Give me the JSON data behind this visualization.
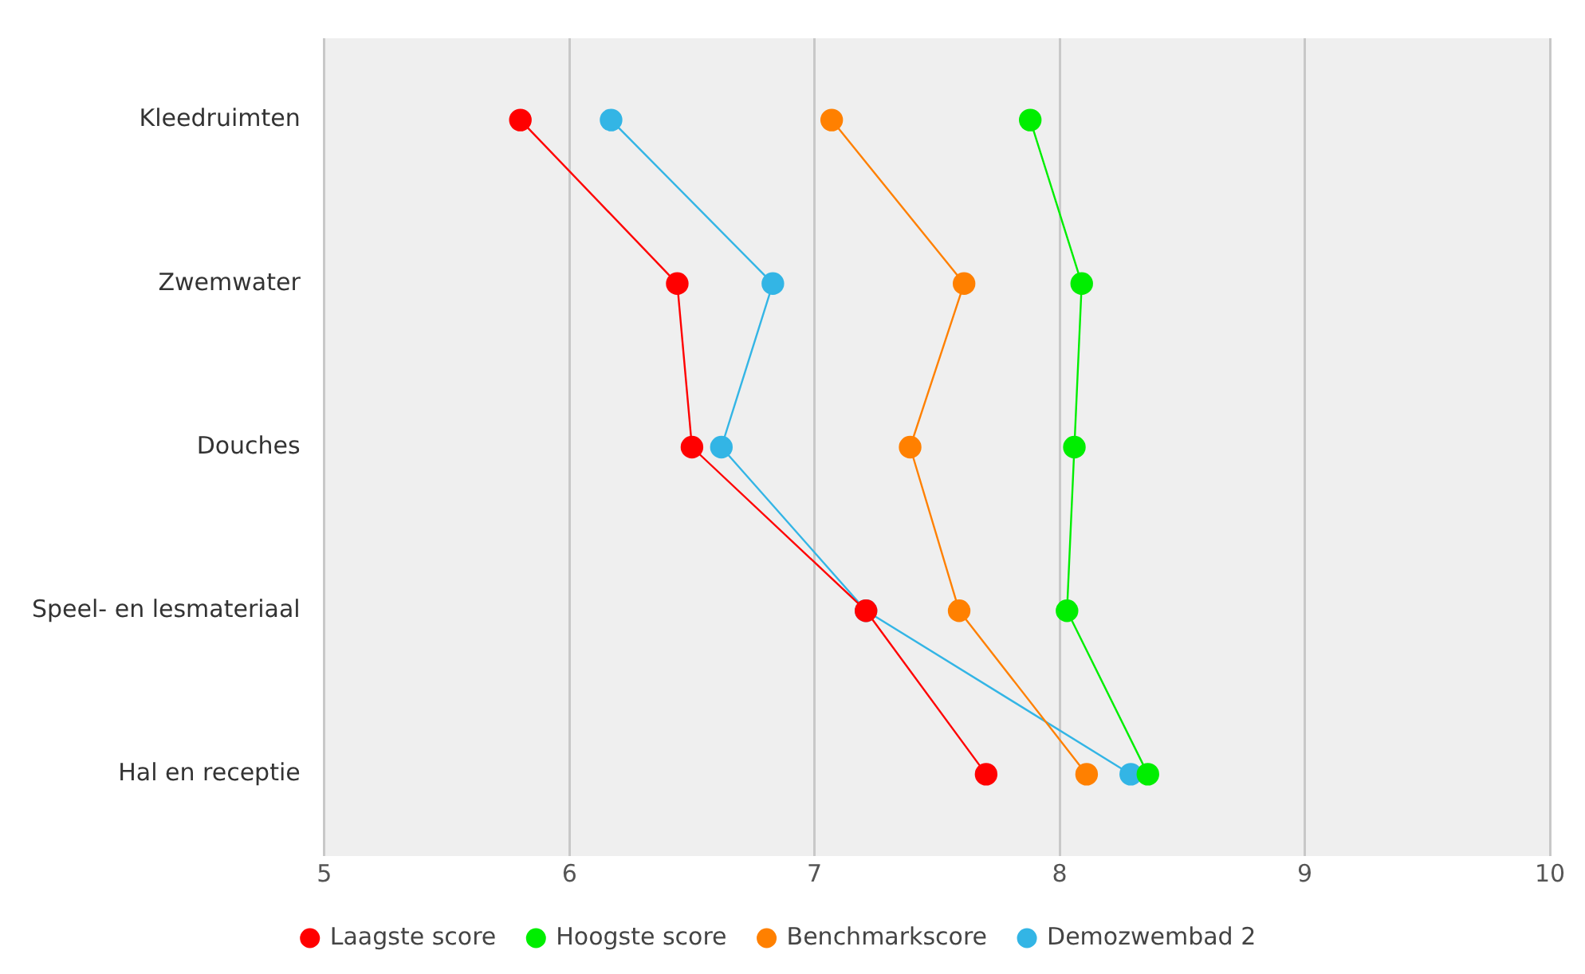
{
  "chart_data": {
    "type": "line",
    "orientation": "horizontal",
    "categories": [
      "Kleedruimten",
      "Zwemwater",
      "Douches",
      "Speel- en lesmateriaal",
      "Hal en receptie"
    ],
    "series": [
      {
        "name": "Laagste score",
        "color": "#ff0000",
        "values": [
          5.8,
          6.44,
          6.5,
          7.21,
          7.7
        ]
      },
      {
        "name": "Hoogste score",
        "color": "#00ee00",
        "values": [
          7.88,
          8.09,
          8.06,
          8.03,
          8.36
        ]
      },
      {
        "name": "Benchmarkscore",
        "color": "#ff8000",
        "values": [
          7.07,
          7.61,
          7.39,
          7.59,
          8.11
        ]
      },
      {
        "name": "Demozwembad 2",
        "color": "#33b5e5",
        "values": [
          6.17,
          6.83,
          6.62,
          7.21,
          8.29
        ]
      }
    ],
    "xlim": [
      5,
      10
    ],
    "xticks": [
      5,
      6,
      7,
      8,
      9,
      10
    ],
    "grid": "x",
    "legend": "bottom",
    "marker": "circle",
    "line_style": "solid"
  }
}
